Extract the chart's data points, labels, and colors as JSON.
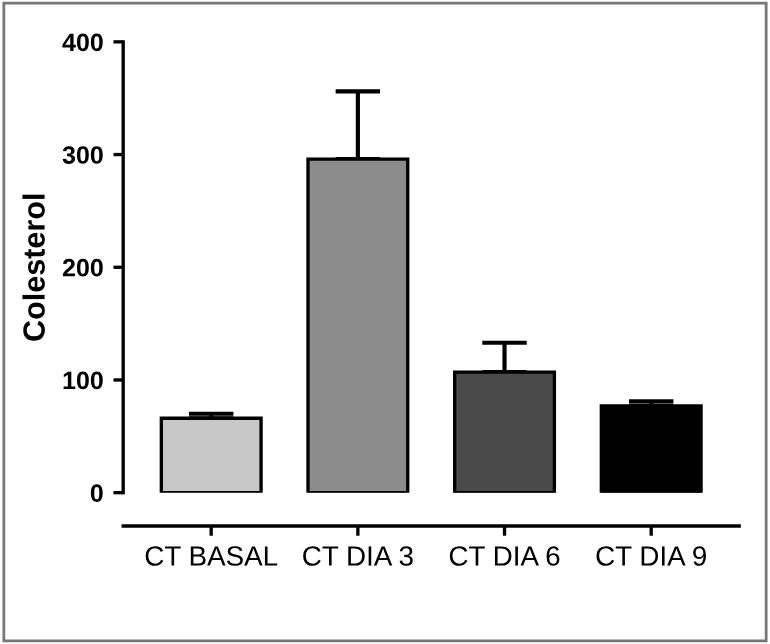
{
  "chart_data": {
    "type": "bar",
    "ylabel": "Colesterol",
    "categories": [
      "CT BASAL",
      "CT DIA 3",
      "CT DIA 6",
      "CT DIA 9"
    ],
    "values": [
      66,
      296,
      107,
      77
    ],
    "colors": [
      "#c8c8c8",
      "#8c8c8c",
      "#4a4a4a",
      "#000000"
    ],
    "errors": [
      [
        66,
        70
      ],
      [
        296,
        356
      ],
      [
        107,
        133
      ],
      [
        77,
        81
      ]
    ],
    "ylim": [
      0,
      400
    ],
    "yticks": [
      0,
      100,
      200,
      300,
      400
    ],
    "grid": false,
    "legend": false
  }
}
